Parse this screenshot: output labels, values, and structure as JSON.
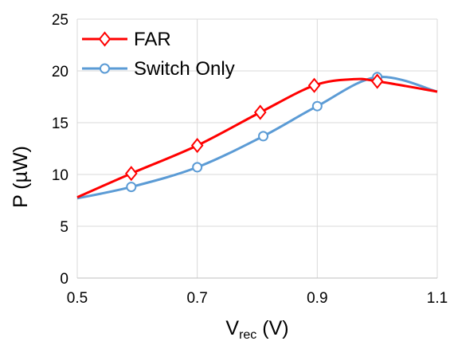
{
  "chart_data": {
    "type": "line",
    "title": "",
    "xlabel": {
      "main": "V",
      "sub": "rec",
      "unit": " (V)"
    },
    "ylabel": "P (µW)",
    "xlim": [
      0.5,
      1.1
    ],
    "ylim": [
      0,
      25
    ],
    "xticks": [
      "0.5",
      "0.7",
      "0.9",
      "1.1"
    ],
    "yticks": [
      "0",
      "5",
      "10",
      "15",
      "20",
      "25"
    ],
    "grid": true,
    "legend_position": "top-left",
    "series": [
      {
        "name": "FAR",
        "color": "#ff0000",
        "marker": "diamond",
        "line": [
          [
            0.5,
            7.8
          ],
          [
            0.59,
            10.1
          ],
          [
            0.7,
            12.8
          ],
          [
            0.805,
            16.0
          ],
          [
            0.895,
            18.6
          ],
          [
            0.96,
            19.2
          ],
          [
            1.0,
            19.0
          ],
          [
            1.1,
            18.0
          ]
        ],
        "markers": [
          [
            0.59,
            10.1
          ],
          [
            0.7,
            12.8
          ],
          [
            0.805,
            16.0
          ],
          [
            0.895,
            18.6
          ],
          [
            1.0,
            19.0
          ]
        ]
      },
      {
        "name": "Switch Only",
        "color": "#5b9bd5",
        "marker": "circle",
        "line": [
          [
            0.5,
            7.7
          ],
          [
            0.59,
            8.8
          ],
          [
            0.7,
            10.7
          ],
          [
            0.81,
            13.7
          ],
          [
            0.9,
            16.6
          ],
          [
            1.0,
            19.4
          ],
          [
            1.1,
            18.0
          ]
        ],
        "markers": [
          [
            0.59,
            8.8
          ],
          [
            0.7,
            10.7
          ],
          [
            0.81,
            13.7
          ],
          [
            0.9,
            16.6
          ],
          [
            1.0,
            19.4
          ]
        ]
      }
    ]
  }
}
